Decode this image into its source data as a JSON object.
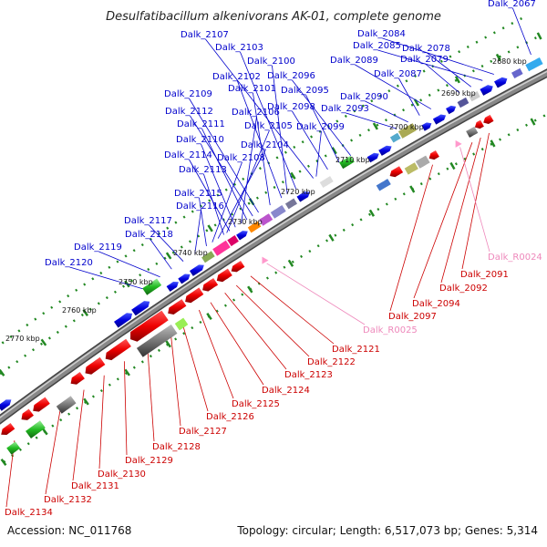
{
  "title": "Desulfatibacillum alkenivorans AK-01, complete genome",
  "footer": {
    "accession": "Accession: NC_011768",
    "topology": "Topology: circular; Length: 6,517,073 bp; Genes: 5,314"
  },
  "colors": {
    "label_plus": "#0000cc",
    "label_minus": "#cc0000",
    "label_rna": "#ee88bb",
    "gene_plus": "#0000ee",
    "gene_minus": "#ee0000",
    "backbone": "#777777",
    "tick": "#228822"
  },
  "kbp_ticks": [
    "2680 kbp",
    "2690 kbp",
    "2700 kbp",
    "2710 kbp",
    "2720 kbp",
    "2730 kbp",
    "2740 kbp",
    "2750 kbp",
    "2760 kbp",
    "2770 kbp"
  ],
  "labels_plus": [
    "Dalk_2067",
    "Dalk_2084",
    "Dalk_2107",
    "Dalk_2085",
    "Dalk_2078",
    "Dalk_2103",
    "Dalk_2100",
    "Dalk_2089",
    "Dalk_2079",
    "Dalk_2102",
    "Dalk_2096",
    "Dalk_2087",
    "Dalk_2101",
    "Dalk_2095",
    "Dalk_2109",
    "Dalk_2090",
    "Dalk_2112",
    "Dalk_2106",
    "Dalk_2098",
    "Dalk_2093",
    "Dalk_2111",
    "Dalk_2105",
    "Dalk_2099",
    "Dalk_2110",
    "Dalk_2104",
    "Dalk_2114",
    "Dalk_2108",
    "Dalk_2113",
    "Dalk_2115",
    "Dalk_2116",
    "Dalk_2117",
    "Dalk_2118",
    "Dalk_2119",
    "Dalk_2120"
  ],
  "labels_minus": [
    "Dalk_2091",
    "Dalk_2092",
    "Dalk_2094",
    "Dalk_2097",
    "Dalk_2121",
    "Dalk_2122",
    "Dalk_2123",
    "Dalk_2124",
    "Dalk_2125",
    "Dalk_2126",
    "Dalk_2127",
    "Dalk_2128",
    "Dalk_2129",
    "Dalk_2130",
    "Dalk_2131",
    "Dalk_2132",
    "Dalk_2134"
  ],
  "labels_rna": [
    "Dalk_R0024",
    "Dalk_R0025"
  ]
}
